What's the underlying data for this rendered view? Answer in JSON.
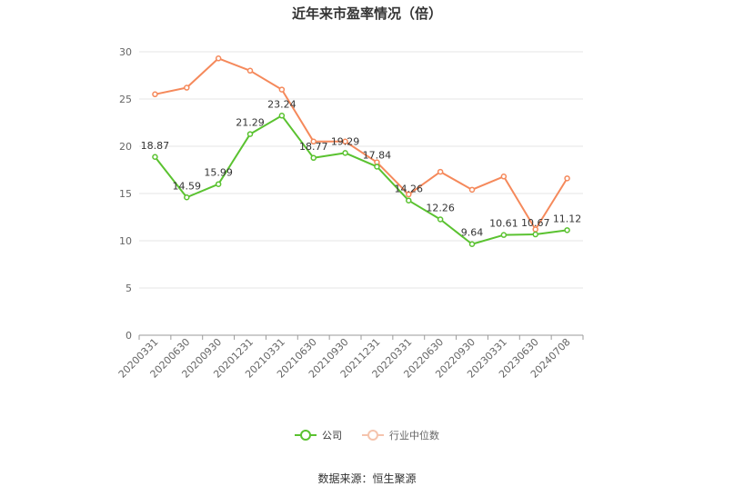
{
  "chart_data": {
    "type": "line",
    "title": "近年来市盈率情况（倍）",
    "categories": [
      "20200331",
      "20200630",
      "20200930",
      "20201231",
      "20210331",
      "20210630",
      "20210930",
      "20211231",
      "20220331",
      "20220630",
      "20220930",
      "20230331",
      "20230630",
      "20240708"
    ],
    "series": [
      {
        "name": "公司",
        "color": "#5ac230",
        "values": [
          18.87,
          14.59,
          15.99,
          21.29,
          23.24,
          18.77,
          19.29,
          17.84,
          14.26,
          12.26,
          9.64,
          10.61,
          10.67,
          11.12
        ],
        "labels": [
          "18.87",
          "14.59",
          "15.99",
          "21.29",
          "23.24",
          "18.77",
          "19.29",
          "17.84",
          "14.26",
          "12.26",
          "9.64",
          "10.61",
          "10.67",
          "11.12"
        ]
      },
      {
        "name": "行业中位数",
        "color": "#f5895b",
        "values": [
          25.5,
          26.2,
          29.3,
          28.0,
          26.0,
          20.5,
          20.5,
          18.3,
          14.9,
          17.3,
          15.4,
          16.8,
          11.2,
          16.6
        ]
      }
    ],
    "yticks": [
      0,
      5,
      10,
      15,
      20,
      25,
      30
    ],
    "ylim": [
      0,
      30
    ],
    "grid": true,
    "legend_position": "bottom"
  },
  "source": "数据来源：恒生聚源"
}
